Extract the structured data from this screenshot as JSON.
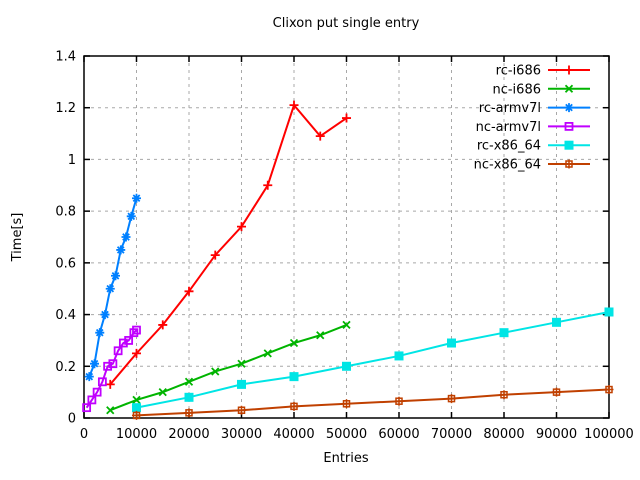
{
  "chart_data": {
    "type": "line",
    "title": "Clixon put single entry",
    "xlabel": "Entries",
    "ylabel": "Time[s]",
    "xlim": [
      0,
      100000
    ],
    "ylim": [
      0,
      1.4
    ],
    "xtick_step": 10000,
    "ytick_step": 0.2,
    "grid": true,
    "grid_style": "dashed-gray",
    "legend_position": "top-right-inside",
    "axis_color": "#000000",
    "grid_color": "#a8a8a8",
    "background_color": "#ffffff",
    "series": [
      {
        "name": "rc-i686",
        "color": "#ff0000",
        "marker": "plus",
        "x": [
          5000,
          10000,
          15000,
          20000,
          25000,
          30000,
          35000,
          40000,
          45000,
          50000
        ],
        "y": [
          0.13,
          0.25,
          0.36,
          0.49,
          0.63,
          0.74,
          0.9,
          1.21,
          1.09,
          1.16
        ]
      },
      {
        "name": "nc-i686",
        "color": "#00b400",
        "marker": "cross",
        "x": [
          5000,
          10000,
          15000,
          20000,
          25000,
          30000,
          35000,
          40000,
          45000,
          50000
        ],
        "y": [
          0.03,
          0.07,
          0.1,
          0.14,
          0.18,
          0.21,
          0.25,
          0.29,
          0.32,
          0.36
        ]
      },
      {
        "name": "rc-armv7l",
        "color": "#0080ff",
        "marker": "asterisk",
        "x": [
          1000,
          2000,
          3000,
          4000,
          5000,
          6000,
          7000,
          8000,
          9000,
          10000
        ],
        "y": [
          0.16,
          0.21,
          0.33,
          0.4,
          0.5,
          0.55,
          0.65,
          0.7,
          0.78,
          0.85
        ]
      },
      {
        "name": "nc-armv7l",
        "color": "#c000ff",
        "marker": "open-square",
        "x": [
          500,
          1500,
          2500,
          3500,
          4500,
          5500,
          6500,
          7500,
          8500,
          9500,
          10000
        ],
        "y": [
          0.04,
          0.07,
          0.1,
          0.14,
          0.2,
          0.21,
          0.26,
          0.29,
          0.3,
          0.33,
          0.34
        ]
      },
      {
        "name": "rc-x86_64",
        "color": "#00e5e5",
        "marker": "filled-square",
        "x": [
          10000,
          20000,
          30000,
          40000,
          50000,
          60000,
          70000,
          80000,
          90000,
          100000
        ],
        "y": [
          0.04,
          0.08,
          0.13,
          0.16,
          0.2,
          0.24,
          0.29,
          0.33,
          0.37,
          0.41
        ]
      },
      {
        "name": "nc-x86_64",
        "color": "#c04000",
        "marker": "square-plus",
        "x": [
          10000,
          20000,
          30000,
          40000,
          50000,
          60000,
          70000,
          80000,
          90000,
          100000
        ],
        "y": [
          0.01,
          0.02,
          0.03,
          0.045,
          0.055,
          0.065,
          0.075,
          0.09,
          0.1,
          0.11
        ]
      }
    ]
  }
}
